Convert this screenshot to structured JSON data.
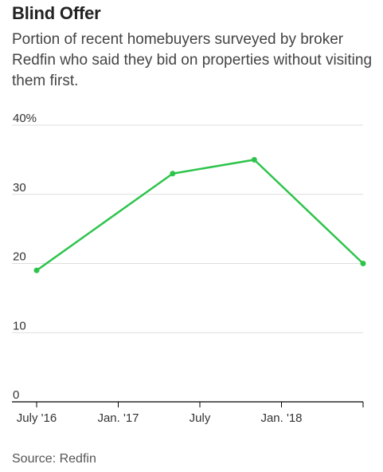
{
  "title": "Blind Offer",
  "subtitle": "Portion of recent homebuyers surveyed by broker Redfin who said they bid on properties without visiting them first.",
  "source": "Source: Redfin",
  "chart_data": {
    "type": "line",
    "title": "Blind Offer",
    "subtitle": "Portion of recent homebuyers surveyed by broker Redfin who said they bid on properties without visiting them first.",
    "x_tick_labels": [
      "July '16",
      "Jan. '17",
      "July",
      "Jan. '18"
    ],
    "y_tick_labels": [
      "40%",
      "30",
      "20",
      "10",
      "0"
    ],
    "ylim": [
      0,
      40
    ],
    "grid": true,
    "line_color": "#2ec44c",
    "series": [
      {
        "x": [
          "2016-07",
          "2017-05",
          "2017-11",
          "2018-07"
        ],
        "y": [
          19,
          33,
          35,
          20
        ]
      }
    ]
  }
}
